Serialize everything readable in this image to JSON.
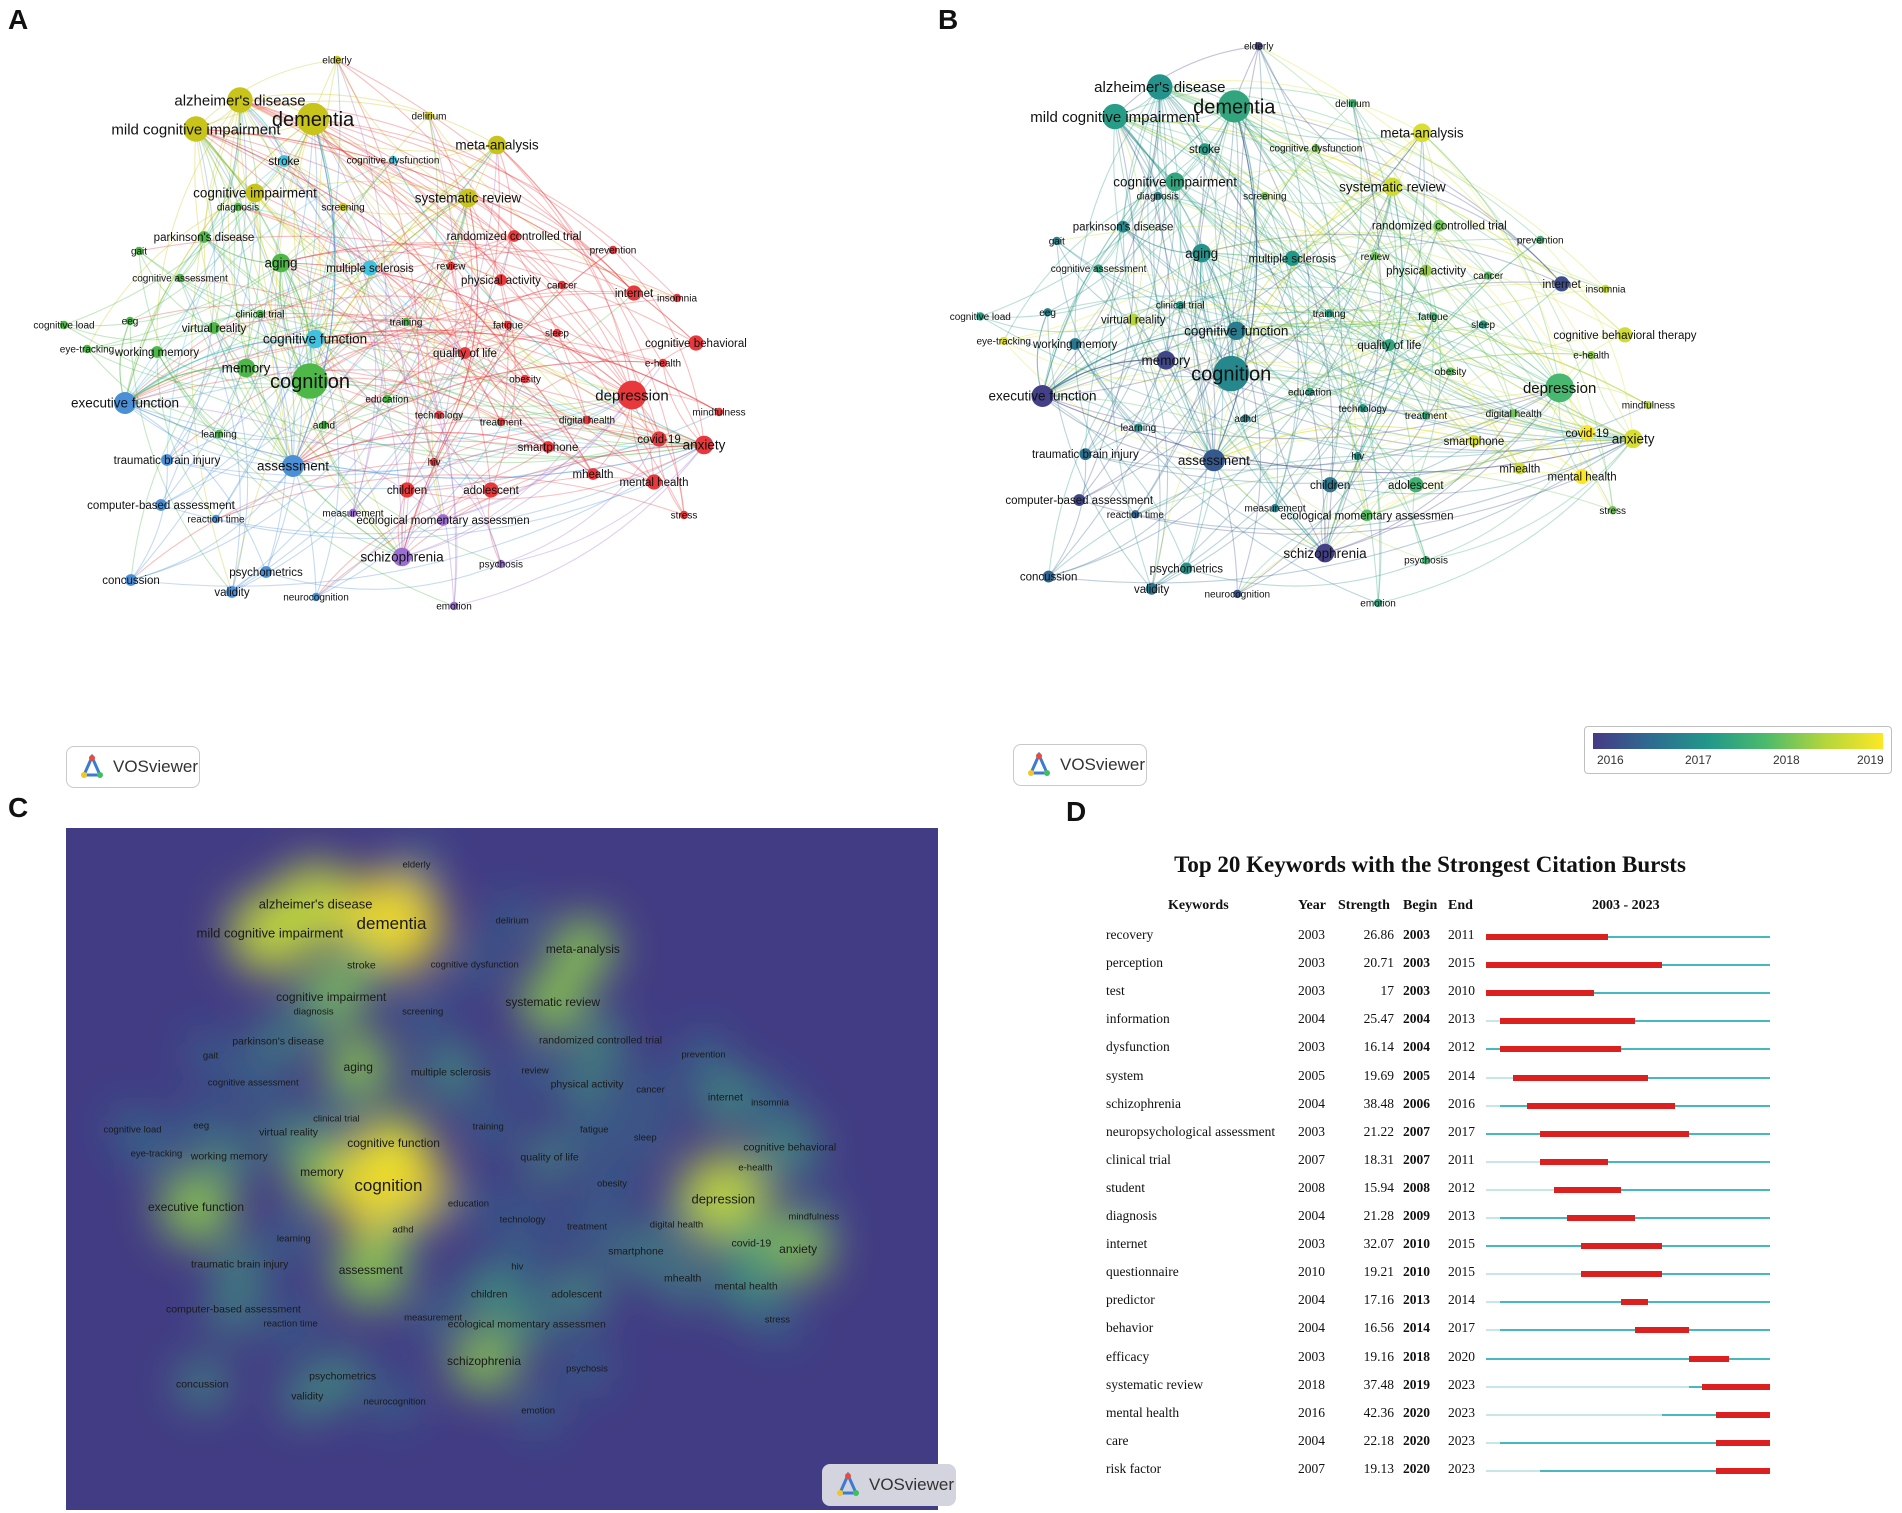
{
  "panels": {
    "a": {
      "letter": "A"
    },
    "b": {
      "letter": "B",
      "legend": {
        "ticks": [
          "2016",
          "2017",
          "2018",
          "2019"
        ],
        "colors": [
          "#463a85",
          "#2d6c91",
          "#22988a",
          "#4dbb6b",
          "#b4d63c",
          "#fde725"
        ]
      }
    },
    "c": {
      "letter": "C"
    },
    "d": {
      "letter": "D"
    }
  },
  "vosviewer_label": "VOSviewer",
  "network": {
    "cluster_colors": {
      "red": "#e8383b",
      "yellow": "#c8c41a",
      "green": "#4db848",
      "blue": "#4b8fd6",
      "purple": "#9b6fd1",
      "cyan": "#3ec2e0"
    },
    "nodes": [
      {
        "label": "elderly",
        "cluster": "yellow",
        "weight": 1,
        "year": 2015.4
      },
      {
        "label": "alzheimer's disease",
        "cluster": "yellow",
        "weight": 6,
        "year": 2016.8
      },
      {
        "label": "dementia",
        "cluster": "yellow",
        "weight": 8,
        "year": 2017.2
      },
      {
        "label": "mild cognitive impairment",
        "cluster": "yellow",
        "weight": 6,
        "year": 2017.0
      },
      {
        "label": "delirium",
        "cluster": "yellow",
        "weight": 1,
        "year": 2017.5
      },
      {
        "label": "meta-analysis",
        "cluster": "yellow",
        "weight": 4,
        "year": 2018.9
      },
      {
        "label": "stroke",
        "cluster": "cyan",
        "weight": 2,
        "year": 2017.0
      },
      {
        "label": "cognitive dysfunction",
        "cluster": "cyan",
        "weight": 1,
        "year": 2018.0
      },
      {
        "label": "cognitive impairment",
        "cluster": "yellow",
        "weight": 4,
        "year": 2017.2
      },
      {
        "label": "systematic review",
        "cluster": "yellow",
        "weight": 4,
        "year": 2018.8
      },
      {
        "label": "diagnosis",
        "cluster": "green",
        "weight": 1,
        "year": 2016.5
      },
      {
        "label": "screening",
        "cluster": "yellow",
        "weight": 1,
        "year": 2018.0
      },
      {
        "label": "parkinson's disease",
        "cluster": "green",
        "weight": 2,
        "year": 2016.6
      },
      {
        "label": "randomized controlled trial",
        "cluster": "red",
        "weight": 2,
        "year": 2018.0
      },
      {
        "label": "prevention",
        "cluster": "red",
        "weight": 1,
        "year": 2017.5
      },
      {
        "label": "gait",
        "cluster": "green",
        "weight": 1,
        "year": 2016.5
      },
      {
        "label": "aging",
        "cluster": "green",
        "weight": 4,
        "year": 2016.8
      },
      {
        "label": "review",
        "cluster": "red",
        "weight": 1,
        "year": 2018.0
      },
      {
        "label": "multiple sclerosis",
        "cluster": "cyan",
        "weight": 3,
        "year": 2016.9
      },
      {
        "label": "physical activity",
        "cluster": "red",
        "weight": 2,
        "year": 2018.3
      },
      {
        "label": "cognitive assessment",
        "cluster": "green",
        "weight": 1,
        "year": 2017.2
      },
      {
        "label": "cancer",
        "cluster": "red",
        "weight": 1,
        "year": 2017.8
      },
      {
        "label": "internet",
        "cluster": "red",
        "weight": 3,
        "year": 2015.6
      },
      {
        "label": "insomnia",
        "cluster": "red",
        "weight": 1,
        "year": 2018.7
      },
      {
        "label": "clinical trial",
        "cluster": "green",
        "weight": 1,
        "year": 2017.0
      },
      {
        "label": "cognitive load",
        "cluster": "green",
        "weight": 1,
        "year": 2017.0
      },
      {
        "label": "eeg",
        "cluster": "green",
        "weight": 1,
        "year": 2016.5
      },
      {
        "label": "training",
        "cluster": "green",
        "weight": 1,
        "year": 2017.0
      },
      {
        "label": "fatigue",
        "cluster": "red",
        "weight": 1,
        "year": 2017.5
      },
      {
        "label": "virtual reality",
        "cluster": "green",
        "weight": 2,
        "year": 2018.5
      },
      {
        "label": "sleep",
        "cluster": "red",
        "weight": 1,
        "year": 2017.0
      },
      {
        "label": "cognitive function",
        "cluster": "cyan",
        "weight": 4,
        "year": 2016.4
      },
      {
        "label": "cognitive behavioral",
        "cluster": "red",
        "weight": 3,
        "year": 2018.8
      },
      {
        "label": "eye-tracking",
        "cluster": "green",
        "weight": 1,
        "year": 2019.0
      },
      {
        "label": "working memory",
        "cluster": "green",
        "weight": 2,
        "year": 2016.3
      },
      {
        "label": "quality of life",
        "cluster": "red",
        "weight": 2,
        "year": 2017.2
      },
      {
        "label": "e-health",
        "cluster": "red",
        "weight": 1,
        "year": 2018.2
      },
      {
        "label": "memory",
        "cluster": "green",
        "weight": 4,
        "year": 2015.5
      },
      {
        "label": "obesity",
        "cluster": "red",
        "weight": 1,
        "year": 2017.8
      },
      {
        "label": "cognition",
        "cluster": "green",
        "weight": 9,
        "year": 2016.6
      },
      {
        "label": "education",
        "cluster": "green",
        "weight": 1,
        "year": 2017.0
      },
      {
        "label": "depression",
        "cluster": "red",
        "weight": 7,
        "year": 2017.6
      },
      {
        "label": "mindfulness",
        "cluster": "red",
        "weight": 1,
        "year": 2018.5
      },
      {
        "label": "executive function",
        "cluster": "blue",
        "weight": 5,
        "year": 2015.4
      },
      {
        "label": "technology",
        "cluster": "red",
        "weight": 1,
        "year": 2017.0
      },
      {
        "label": "digital health",
        "cluster": "red",
        "weight": 1,
        "year": 2018.0
      },
      {
        "label": "treatment",
        "cluster": "red",
        "weight": 1,
        "year": 2017.3
      },
      {
        "label": "adhd",
        "cluster": "green",
        "weight": 1,
        "year": 2016.5
      },
      {
        "label": "learning",
        "cluster": "green",
        "weight": 1,
        "year": 2016.8
      },
      {
        "label": "covid-19",
        "cluster": "red",
        "weight": 3,
        "year": 2019.3
      },
      {
        "label": "anxiety",
        "cluster": "red",
        "weight": 4,
        "year": 2018.9
      },
      {
        "label": "smartphone",
        "cluster": "red",
        "weight": 2,
        "year": 2018.9
      },
      {
        "label": "traumatic brain injury",
        "cluster": "blue",
        "weight": 2,
        "year": 2016.2
      },
      {
        "label": "assessment",
        "cluster": "blue",
        "weight": 5,
        "year": 2015.8
      },
      {
        "label": "hiv",
        "cluster": "red",
        "weight": 1,
        "year": 2016.8
      },
      {
        "label": "mhealth",
        "cluster": "red",
        "weight": 2,
        "year": 2018.8
      },
      {
        "label": "mental health",
        "cluster": "red",
        "weight": 3,
        "year": 2019.3
      },
      {
        "label": "children",
        "cluster": "red",
        "weight": 3,
        "year": 2016.3
      },
      {
        "label": "adolescent",
        "cluster": "red",
        "weight": 3,
        "year": 2017.5
      },
      {
        "label": "computer-based assessment",
        "cluster": "blue",
        "weight": 2,
        "year": 2015.5
      },
      {
        "label": "measurement",
        "cluster": "purple",
        "weight": 1,
        "year": 2016.5
      },
      {
        "label": "ecological momentary assessmen",
        "cluster": "purple",
        "weight": 2,
        "year": 2017.8
      },
      {
        "label": "reaction time",
        "cluster": "blue",
        "weight": 1,
        "year": 2016.0
      },
      {
        "label": "stress",
        "cluster": "red",
        "weight": 1,
        "year": 2018.0
      },
      {
        "label": "schizophrenia",
        "cluster": "purple",
        "weight": 4,
        "year": 2015.4
      },
      {
        "label": "psychosis",
        "cluster": "purple",
        "weight": 1,
        "year": 2017.5
      },
      {
        "label": "psychometrics",
        "cluster": "blue",
        "weight": 2,
        "year": 2016.8
      },
      {
        "label": "concussion",
        "cluster": "blue",
        "weight": 2,
        "year": 2016.0
      },
      {
        "label": "validity",
        "cluster": "blue",
        "weight": 2,
        "year": 2016.3
      },
      {
        "label": "neurocognition",
        "cluster": "blue",
        "weight": 1,
        "year": 2015.7
      },
      {
        "label": "emotion",
        "cluster": "purple",
        "weight": 1,
        "year": 2017.2
      }
    ],
    "label_overrides_b": {
      "cognitive behavioral": "cognitive behavioral therapy"
    }
  },
  "burst_table": {
    "title": "Top 20 Keywords with the Strongest Citation Bursts",
    "headers": {
      "keywords": "Keywords",
      "year": "Year",
      "strength": "Strength",
      "begin": "Begin",
      "end": "End",
      "range": "2003 - 2023"
    },
    "range_start": 2003,
    "range_end": 2023,
    "colors": {
      "burst": "#dc1f1f",
      "active": "#45b8c0",
      "inactive": "#c6e6e9"
    },
    "rows": [
      {
        "keyword": "recovery",
        "year": "2003",
        "strength": "26.86",
        "begin": "2003",
        "end": "2011"
      },
      {
        "keyword": "perception",
        "year": "2003",
        "strength": "20.71",
        "begin": "2003",
        "end": "2015"
      },
      {
        "keyword": "test",
        "year": "2003",
        "strength": "17",
        "begin": "2003",
        "end": "2010"
      },
      {
        "keyword": "information",
        "year": "2004",
        "strength": "25.47",
        "begin": "2004",
        "end": "2013"
      },
      {
        "keyword": "dysfunction",
        "year": "2003",
        "strength": "16.14",
        "begin": "2004",
        "end": "2012"
      },
      {
        "keyword": "system",
        "year": "2005",
        "strength": "19.69",
        "begin": "2005",
        "end": "2014"
      },
      {
        "keyword": "schizophrenia",
        "year": "2004",
        "strength": "38.48",
        "begin": "2006",
        "end": "2016"
      },
      {
        "keyword": "neuropsychological assessment",
        "year": "2003",
        "strength": "21.22",
        "begin": "2007",
        "end": "2017"
      },
      {
        "keyword": "clinical trial",
        "year": "2007",
        "strength": "18.31",
        "begin": "2007",
        "end": "2011"
      },
      {
        "keyword": "student",
        "year": "2008",
        "strength": "15.94",
        "begin": "2008",
        "end": "2012"
      },
      {
        "keyword": "diagnosis",
        "year": "2004",
        "strength": "21.28",
        "begin": "2009",
        "end": "2013"
      },
      {
        "keyword": "internet",
        "year": "2003",
        "strength": "32.07",
        "begin": "2010",
        "end": "2015"
      },
      {
        "keyword": "questionnaire",
        "year": "2010",
        "strength": "19.21",
        "begin": "2010",
        "end": "2015"
      },
      {
        "keyword": "predictor",
        "year": "2004",
        "strength": "17.16",
        "begin": "2013",
        "end": "2014"
      },
      {
        "keyword": "behavior",
        "year": "2004",
        "strength": "16.56",
        "begin": "2014",
        "end": "2017"
      },
      {
        "keyword": "efficacy",
        "year": "2003",
        "strength": "19.16",
        "begin": "2018",
        "end": "2020"
      },
      {
        "keyword": "systematic review",
        "year": "2018",
        "strength": "37.48",
        "begin": "2019",
        "end": "2023"
      },
      {
        "keyword": "mental health",
        "year": "2016",
        "strength": "42.36",
        "begin": "2020",
        "end": "2023"
      },
      {
        "keyword": "care",
        "year": "2004",
        "strength": "22.18",
        "begin": "2020",
        "end": "2023"
      },
      {
        "keyword": "risk factor",
        "year": "2007",
        "strength": "19.13",
        "begin": "2020",
        "end": "2023"
      }
    ]
  }
}
